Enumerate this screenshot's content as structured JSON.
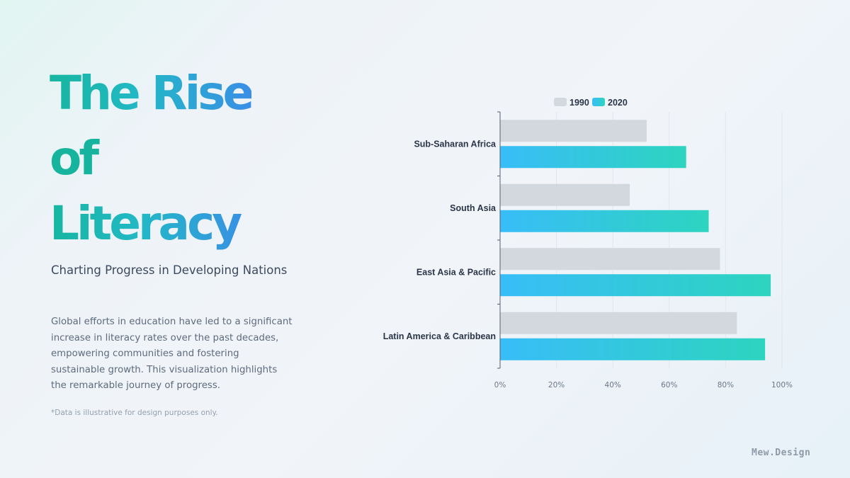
{
  "title": {
    "line1": "The Rise",
    "line2": "of",
    "line3": "Literacy"
  },
  "subtitle": "Charting Progress in Developing Nations",
  "description": "Global efforts in education have led to a significant increase in literacy rates over the past decades, empowering communities and fostering sustainable growth. This visualization highlights the remarkable journey of progress.",
  "footnote": "*Data is illustrative for design purposes only.",
  "brand": "Mew.Design",
  "colors": {
    "series_1990": "#d3d7de",
    "series_2020_start": "#38bdf8",
    "series_2020_end": "#2dd4bf",
    "title_start": "#17b6a0",
    "title_end": "#3a8ee6"
  },
  "chart_data": {
    "type": "bar",
    "orientation": "horizontal",
    "categories": [
      "Sub-Saharan Africa",
      "South Asia",
      "East Asia & Pacific",
      "Latin America & Caribbean"
    ],
    "series": [
      {
        "name": "1990",
        "values": [
          52,
          46,
          78,
          84
        ]
      },
      {
        "name": "2020",
        "values": [
          66,
          74,
          96,
          94
        ]
      }
    ],
    "xlim": [
      0,
      100
    ],
    "xticks": [
      0,
      20,
      40,
      60,
      80,
      100
    ],
    "xtick_labels": [
      "0%",
      "20%",
      "40%",
      "60%",
      "80%",
      "100%"
    ],
    "legend_position": "top",
    "grid": true,
    "title": "",
    "xlabel": "",
    "ylabel": ""
  }
}
